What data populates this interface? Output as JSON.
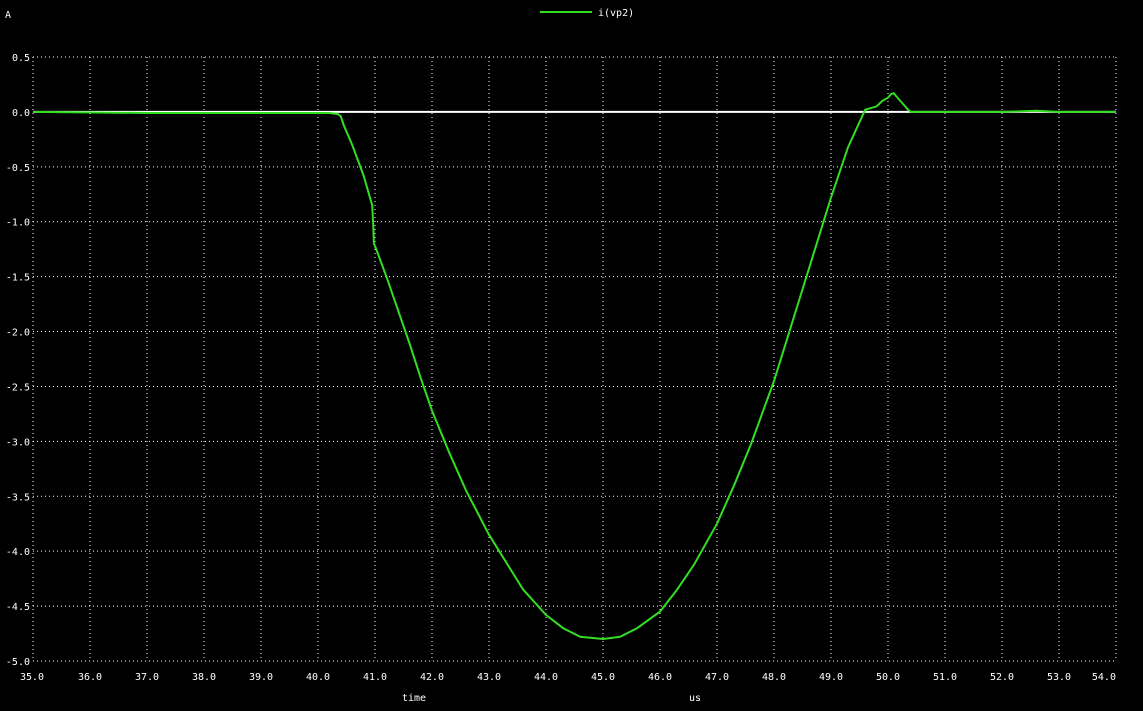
{
  "chart_data": {
    "type": "line",
    "title": "",
    "ylabel": "A",
    "xlabel": "time",
    "xunit": "us",
    "xlim": [
      35.0,
      54.0
    ],
    "ylim": [
      -5.0,
      0.5
    ],
    "grid": true,
    "legend_position": "top-center",
    "x_ticks": [
      "35.0",
      "36.0",
      "37.0",
      "38.0",
      "39.0",
      "40.0",
      "41.0",
      "42.0",
      "43.0",
      "44.0",
      "45.0",
      "46.0",
      "47.0",
      "48.0",
      "49.0",
      "50.0",
      "51.0",
      "52.0",
      "53.0",
      "54.0"
    ],
    "y_ticks": [
      "0.5",
      "0.0",
      "-0.5",
      "-1.0",
      "-1.5",
      "-2.0",
      "-2.5",
      "-3.0",
      "-3.5",
      "-4.0",
      "-4.5",
      "-5.0"
    ],
    "reference_line": {
      "y": 0.0,
      "color": "#ffffff"
    },
    "series": [
      {
        "name": "i(vp2)",
        "color": "#33dd22",
        "x": [
          35.0,
          37.0,
          39.0,
          40.2,
          40.35,
          40.4,
          40.45,
          40.6,
          40.8,
          40.95,
          40.97,
          40.98,
          41.0,
          41.2,
          41.4,
          41.6,
          41.8,
          42.0,
          42.3,
          42.6,
          43.0,
          43.3,
          43.6,
          44.0,
          44.3,
          44.6,
          45.0,
          45.3,
          45.6,
          46.0,
          46.3,
          46.6,
          47.0,
          47.3,
          47.6,
          48.0,
          48.3,
          48.6,
          49.0,
          49.3,
          49.6,
          49.8,
          49.9,
          50.0,
          50.05,
          50.1,
          50.15,
          50.25,
          50.35,
          50.4,
          51.0,
          52.0,
          52.6,
          53.0,
          54.0
        ],
        "y": [
          0.0,
          -0.01,
          -0.01,
          -0.01,
          -0.02,
          -0.04,
          -0.12,
          -0.3,
          -0.58,
          -0.85,
          -1.05,
          -1.2,
          -1.22,
          -1.5,
          -1.8,
          -2.1,
          -2.42,
          -2.72,
          -3.1,
          -3.45,
          -3.85,
          -4.1,
          -4.35,
          -4.58,
          -4.7,
          -4.78,
          -4.8,
          -4.78,
          -4.7,
          -4.55,
          -4.35,
          -4.12,
          -3.75,
          -3.4,
          -3.02,
          -2.45,
          -1.95,
          -1.45,
          -0.78,
          -0.32,
          0.02,
          0.05,
          0.1,
          0.13,
          0.16,
          0.17,
          0.14,
          0.08,
          0.02,
          0.0,
          0.0,
          0.0,
          0.01,
          0.0,
          0.0
        ]
      }
    ]
  }
}
